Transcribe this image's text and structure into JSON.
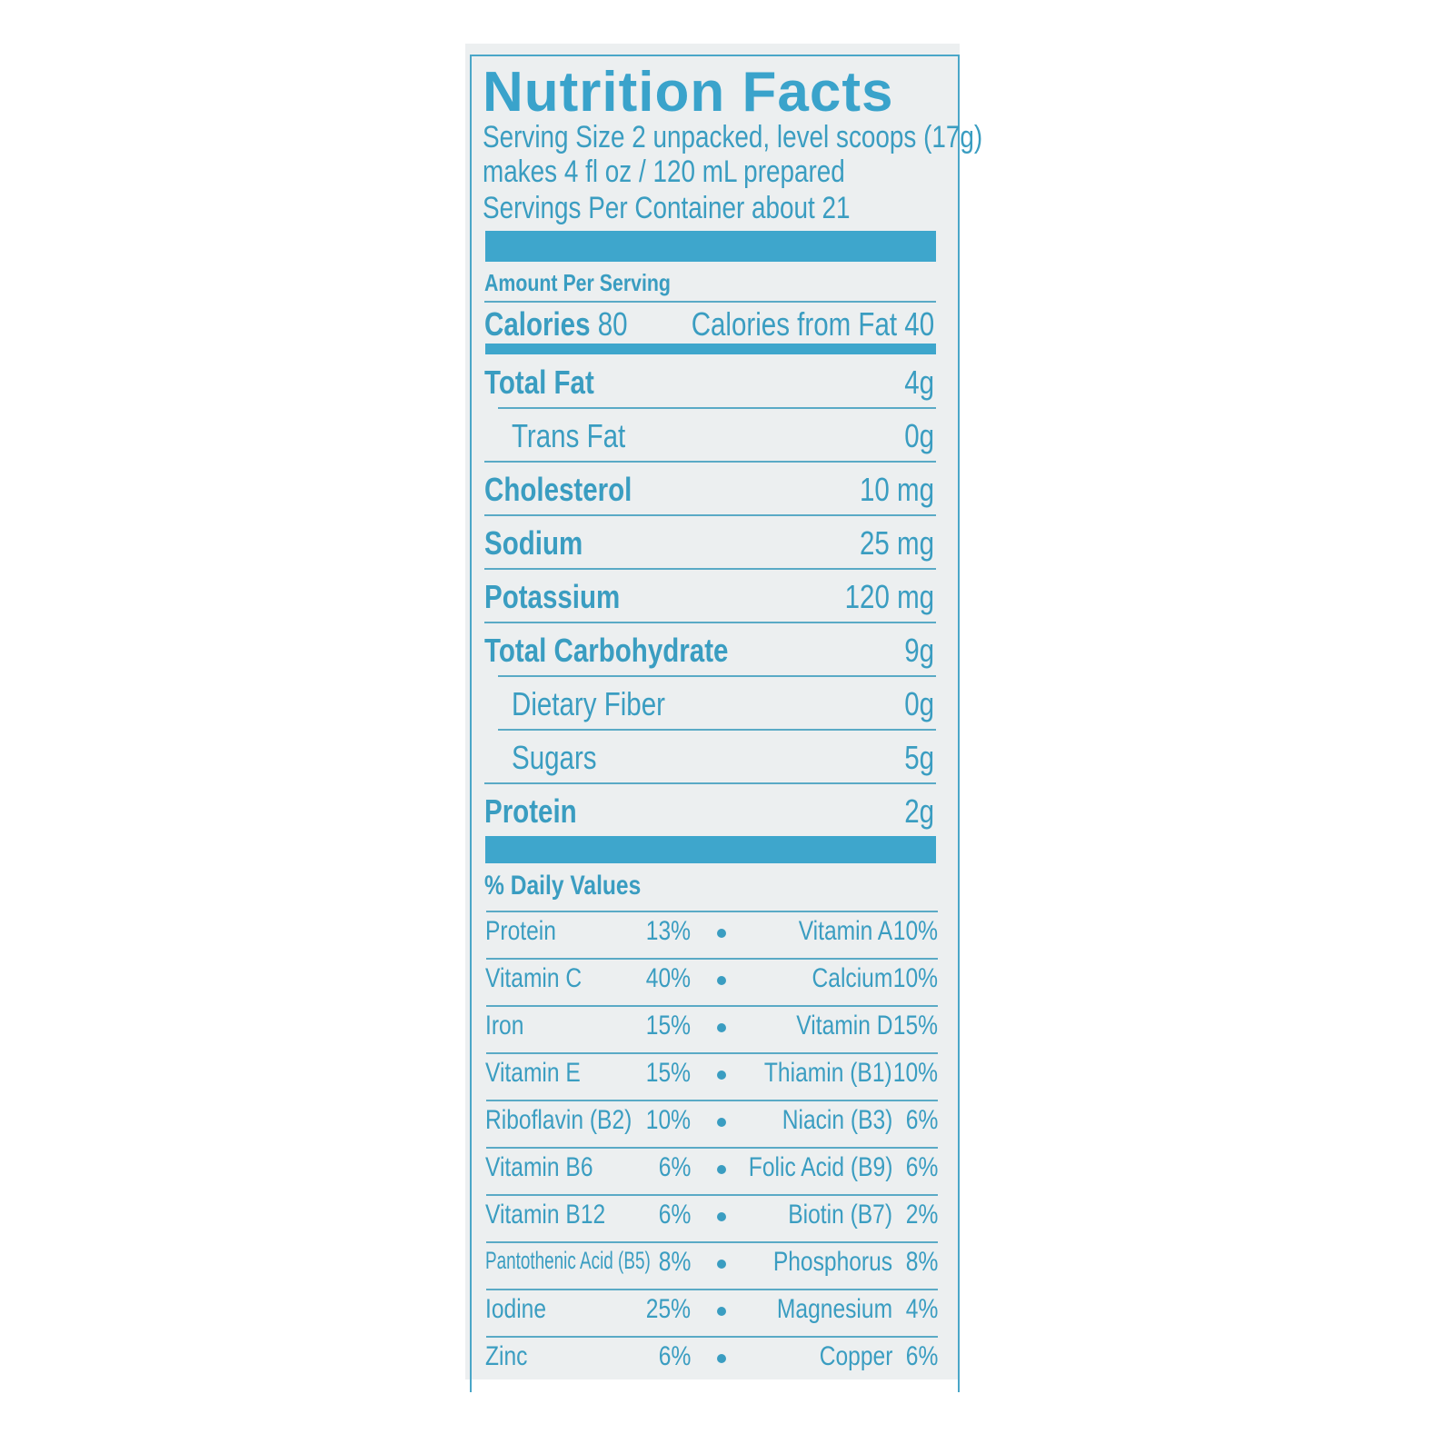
{
  "label": {
    "title": "Nutrition Facts",
    "serving_size": "Serving Size 2 unpacked, level scoops (17g)",
    "prepared": "makes 4 fl oz / 120 mL prepared",
    "servings_per_container": "Servings Per Container about 21",
    "amount_per_serving": "Amount Per Serving",
    "calories_label": "Calories",
    "calories_value": "80",
    "calories_from_fat": "Calories from Fat 40",
    "nutrients": [
      {
        "name": "Total Fat",
        "value": "4g",
        "bold": true
      },
      {
        "name": "Trans Fat",
        "value": "0g",
        "bold": false
      },
      {
        "name": "Cholesterol",
        "value": "10 mg",
        "bold": true
      },
      {
        "name": "Sodium",
        "value": "25 mg",
        "bold": true
      },
      {
        "name": "Potassium",
        "value": "120 mg",
        "bold": true
      },
      {
        "name": "Total Carbohydrate",
        "value": "9g",
        "bold": true
      },
      {
        "name": "Dietary Fiber",
        "value": "0g",
        "bold": false
      },
      {
        "name": "Sugars",
        "value": "5g",
        "bold": false
      },
      {
        "name": "Protein",
        "value": "2g",
        "bold": true
      }
    ],
    "daily_values_heading": "% Daily Values",
    "daily_values": [
      {
        "left_name": "Protein",
        "left_pct": "13%",
        "right_name": "Vitamin A",
        "right_pct": "10%"
      },
      {
        "left_name": "Vitamin C",
        "left_pct": "40%",
        "right_name": "Calcium",
        "right_pct": "10%"
      },
      {
        "left_name": "Iron",
        "left_pct": "15%",
        "right_name": "Vitamin D",
        "right_pct": "15%"
      },
      {
        "left_name": "Vitamin E",
        "left_pct": "15%",
        "right_name": "Thiamin (B1)",
        "right_pct": "10%"
      },
      {
        "left_name": "Riboflavin (B2)",
        "left_pct": "10%",
        "right_name": "Niacin (B3)",
        "right_pct": "6%"
      },
      {
        "left_name": "Vitamin B6",
        "left_pct": "6%",
        "right_name": "Folic Acid (B9)",
        "right_pct": "6%"
      },
      {
        "left_name": "Vitamin B12",
        "left_pct": "6%",
        "right_name": "Biotin (B7)",
        "right_pct": "2%"
      },
      {
        "left_name": "Pantothenic Acid (B5)",
        "left_pct": "8%",
        "right_name": "Phosphorus",
        "right_pct": "8%"
      },
      {
        "left_name": "Iodine",
        "left_pct": "25%",
        "right_name": "Magnesium",
        "right_pct": "4%"
      },
      {
        "left_name": "Zinc",
        "left_pct": "6%",
        "right_name": "Copper",
        "right_pct": "6%"
      }
    ],
    "colors": {
      "ink": "#3a9dc1",
      "bar": "#3ea6cc",
      "background": "#eceff0"
    }
  }
}
